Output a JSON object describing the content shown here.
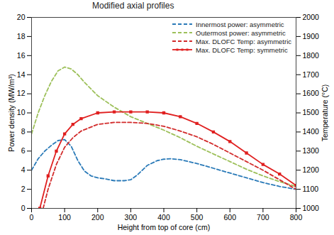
{
  "chart_data": {
    "type": "line",
    "title": "Modified axial profiles",
    "x_label": "Height from top of core (cm)",
    "y_label": "Power density (MW/m³)",
    "y2_label": "Temperature (°C)",
    "xlim": [
      0,
      800
    ],
    "xticks": [
      0,
      100,
      200,
      300,
      400,
      500,
      600,
      700,
      800
    ],
    "ylim": [
      0,
      20
    ],
    "yticks": [
      0,
      2,
      4,
      6,
      8,
      10,
      12,
      14,
      16,
      18,
      20
    ],
    "y2lim": [
      1000,
      2000
    ],
    "y2ticks": [
      1000,
      1100,
      1200,
      1300,
      1400,
      1500,
      1600,
      1700,
      1800,
      1900,
      2000
    ],
    "grid": false,
    "legend": "upper right",
    "series": [
      {
        "name": "Innermost power: asymmetric",
        "color": "#2a7ab8",
        "line_style": "dashed",
        "axis": "y",
        "x": [
          0,
          20,
          40,
          60,
          80,
          100,
          120,
          140,
          160,
          180,
          200,
          220,
          250,
          280,
          300,
          320,
          350,
          380,
          400,
          420,
          450,
          500,
          550,
          600,
          650,
          700,
          750,
          800
        ],
        "values": [
          4,
          5.2,
          6,
          6.6,
          7.1,
          7.2,
          6.5,
          5,
          3.9,
          3.4,
          3.2,
          3.1,
          2.9,
          2.9,
          3,
          3.5,
          4.5,
          5,
          5.15,
          5.2,
          5.1,
          4.7,
          4.2,
          3.7,
          3.2,
          2.7,
          2.3,
          2.0
        ]
      },
      {
        "name": "Outermost power: asymmetric",
        "color": "#9dc05a",
        "line_style": "dashed",
        "axis": "y",
        "x": [
          0,
          20,
          40,
          60,
          80,
          100,
          120,
          140,
          160,
          200,
          250,
          300,
          350,
          400,
          450,
          500,
          550,
          600,
          650,
          700,
          750,
          800
        ],
        "values": [
          7.8,
          10,
          11.8,
          13.3,
          14.4,
          14.8,
          14.6,
          14,
          13.2,
          11.8,
          10.6,
          9.6,
          8.9,
          8.2,
          7.4,
          6.5,
          5.7,
          4.9,
          4.1,
          3.4,
          2.8,
          2.3
        ]
      },
      {
        "name": "Max. DLOFC Temp: asymmetric",
        "color": "#d22b2b",
        "line_style": "dashed",
        "axis": "y2",
        "x": [
          35,
          50,
          75,
          100,
          125,
          150,
          200,
          250,
          300,
          350,
          400,
          450,
          500,
          550,
          600,
          650,
          700,
          750,
          800
        ],
        "values": [
          1000,
          1100,
          1230,
          1320,
          1370,
          1405,
          1440,
          1450,
          1450,
          1445,
          1430,
          1405,
          1375,
          1335,
          1290,
          1245,
          1200,
          1150,
          1100
        ]
      },
      {
        "name": "Max. DLOFC Temp: symmetric",
        "color": "#e02020",
        "line_style": "solid",
        "marker": "square",
        "axis": "y2",
        "x": [
          25,
          50,
          75,
          100,
          125,
          150,
          200,
          250,
          300,
          350,
          400,
          450,
          500,
          550,
          600,
          650,
          700,
          750,
          800
        ],
        "values": [
          1000,
          1170,
          1300,
          1390,
          1440,
          1470,
          1500,
          1505,
          1505,
          1505,
          1500,
          1480,
          1445,
          1400,
          1350,
          1290,
          1230,
          1180,
          1120
        ]
      }
    ]
  }
}
